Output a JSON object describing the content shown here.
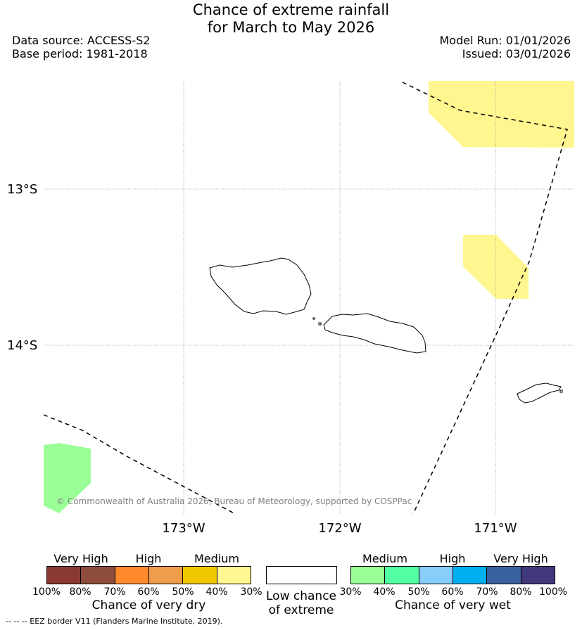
{
  "title": {
    "line1": "Chance of extreme rainfall",
    "line2": "for March to May 2026"
  },
  "meta": {
    "data_source": "Data source: ACCESS-S2",
    "base_period": "Base period: 1981-2018",
    "model_run": "Model Run: 01/01/2026",
    "issued": "Issued: 03/01/2026"
  },
  "map": {
    "lat_labels": [
      "13°S",
      "14°S"
    ],
    "lon_labels": [
      "173°W",
      "172°W",
      "171°W"
    ],
    "credit": "© Commonwealth of Australia 2026, Bureau of Meteorology, supported by COSPPac",
    "colors": {
      "dry_30": "#fff68f",
      "wet_30": "#9aff96",
      "eez_line": "#000000",
      "grid": "#999999"
    }
  },
  "legend": {
    "dry": {
      "categories": [
        "Very High",
        "High",
        "Medium"
      ],
      "ticks": [
        "100%",
        "80%",
        "70%",
        "60%",
        "50%",
        "40%",
        "30%"
      ],
      "colors": [
        "#8b3a33",
        "#8e4d3c",
        "#ff8a2b",
        "#ef9d4b",
        "#f0c800",
        "#fff68f"
      ],
      "title": "Chance of very dry"
    },
    "low": {
      "label_line1": "Low chance",
      "label_line2": "of extreme"
    },
    "wet": {
      "categories": [
        "Medium",
        "High",
        "Very High"
      ],
      "ticks": [
        "30%",
        "40%",
        "50%",
        "60%",
        "70%",
        "80%",
        "100%"
      ],
      "colors": [
        "#9aff96",
        "#52ffa3",
        "#87cefa",
        "#00b0f0",
        "#3a62a0",
        "#41397c"
      ],
      "title": "Chance of very wet"
    }
  },
  "footnote": {
    "eez": "--  --  -- EEZ border V11 (Flanders Marine Institute, 2019)."
  }
}
